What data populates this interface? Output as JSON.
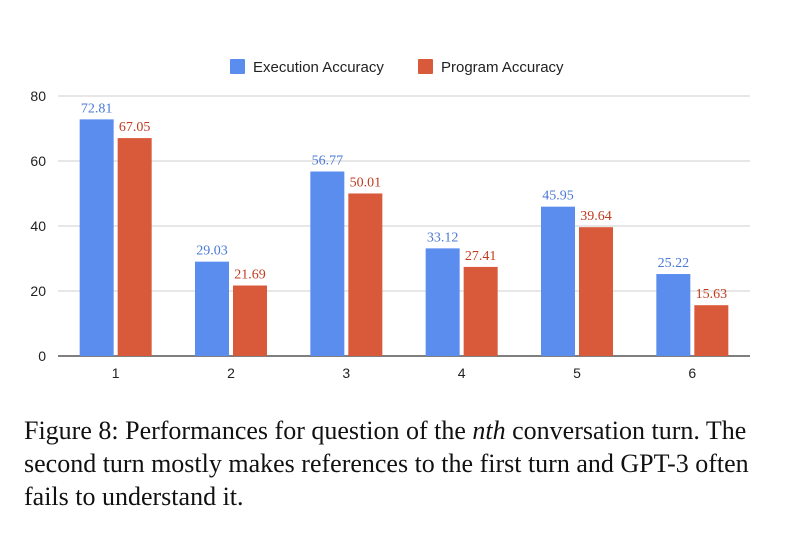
{
  "chart_data": {
    "type": "bar",
    "categories": [
      "1",
      "2",
      "3",
      "4",
      "5",
      "6"
    ],
    "series": [
      {
        "name": "Execution Accuracy",
        "color": "#5b8def",
        "label_color": "#4a78d6",
        "values": [
          72.81,
          29.03,
          56.77,
          33.12,
          45.95,
          25.22
        ]
      },
      {
        "name": "Program Accuracy",
        "color": "#d9593b",
        "label_color": "#c23b1f",
        "values": [
          67.05,
          21.69,
          50.01,
          27.41,
          39.64,
          15.63
        ]
      }
    ],
    "data_labels": [
      [
        "72.81",
        "29.03",
        "56.77",
        "33.12",
        "45.95",
        "25.22"
      ],
      [
        "67.05",
        "21.69",
        "50.01",
        "27.41",
        "39.64",
        "15.63"
      ]
    ],
    "y_ticks": [
      "0",
      "20",
      "40",
      "60",
      "80"
    ],
    "ylim": [
      0,
      80
    ],
    "grid": true,
    "legend_position": "top-center"
  },
  "caption": {
    "prefix": "Figure 8: Performances for question of the ",
    "emphasis": "nth",
    "suffix": " conversation turn. The second turn mostly makes references to the first turn and GPT-3 often fails to understand it."
  }
}
